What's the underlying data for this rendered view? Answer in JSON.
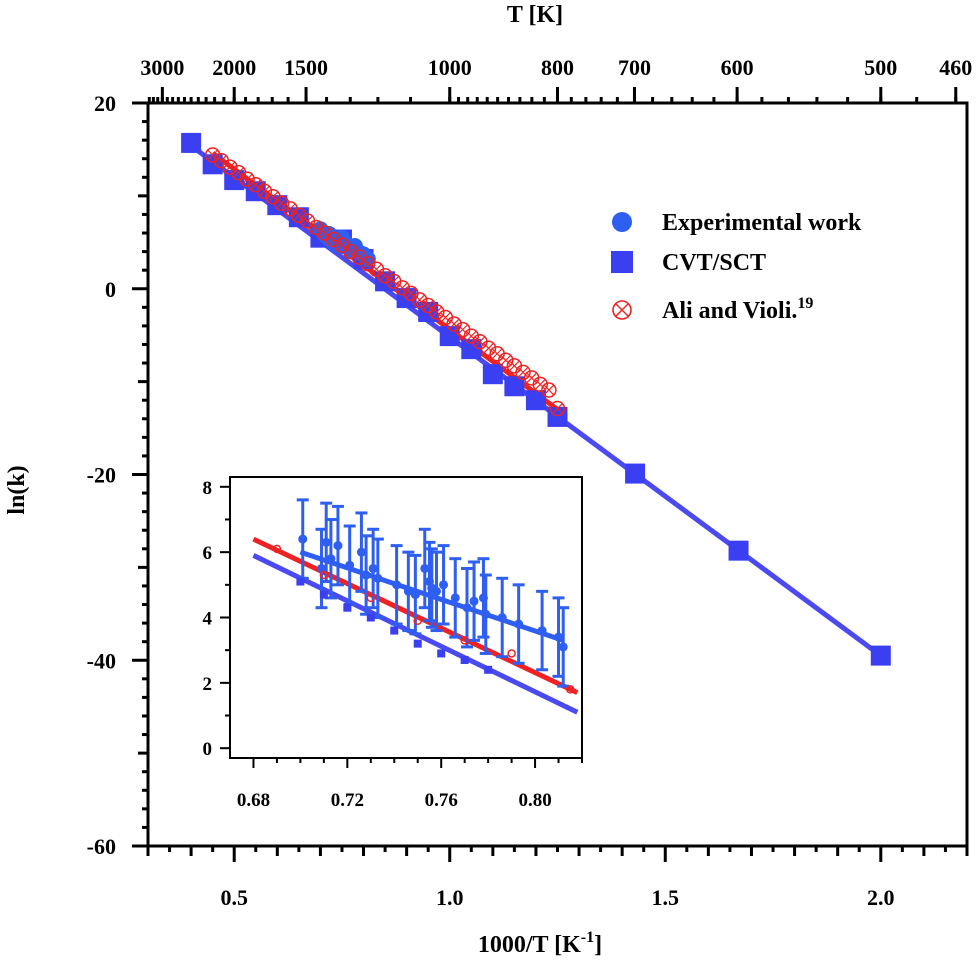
{
  "chart_data": [
    {
      "type": "scatter",
      "xlabel": "1000/T [K",
      "xlabel_sup": "-1",
      "xlabel_tail": "]",
      "ylabel": "ln(k)",
      "top_axis_label": "T [K]",
      "xlim": [
        0.3,
        2.2
      ],
      "ylim": [
        -60,
        20
      ],
      "x_ticks": [
        "0.5",
        "1.0",
        "1.5",
        "2.0"
      ],
      "y_ticks": [
        "20",
        "0",
        "-20",
        "-40",
        "-60"
      ],
      "top_ticks": [
        {
          "T": 3000,
          "label": "3000"
        },
        {
          "T": 2000,
          "label": "2000"
        },
        {
          "T": 1500,
          "label": "1500"
        },
        {
          "T": 1000,
          "label": "1000"
        },
        {
          "T": 800,
          "label": "800"
        },
        {
          "T": 700,
          "label": "700"
        },
        {
          "T": 600,
          "label": "600"
        },
        {
          "T": 500,
          "label": "500"
        },
        {
          "T": 460,
          "label": "460"
        }
      ],
      "legend": {
        "position": "top-right",
        "items": [
          {
            "label": "Experimental work",
            "marker": "circle",
            "color": "#2f5ff0"
          },
          {
            "label": "CVT/SCT",
            "marker": "square",
            "color": "#3b3ff2"
          },
          {
            "label": "Ali and Violi.",
            "sup": "19",
            "marker": "circle-x",
            "color": "#ee2222"
          }
        ]
      },
      "series": [
        {
          "name": "CVT/SCT",
          "color": "#3b3ff2",
          "x": [
            0.4,
            0.45,
            0.5,
            0.55,
            0.6,
            0.65,
            0.7,
            0.75,
            0.8,
            0.85,
            0.9,
            0.95,
            1.0,
            1.05,
            1.1,
            1.15,
            1.2,
            1.25,
            1.43,
            1.67,
            2.0
          ],
          "y": [
            15.7,
            13.4,
            11.7,
            10.5,
            9.0,
            7.7,
            5.5,
            5.3,
            3.2,
            0.8,
            -1.0,
            -2.5,
            -5.1,
            -6.5,
            -9.2,
            -10.5,
            -12.0,
            -13.8,
            -19.9,
            -28.2,
            -39.5
          ]
        },
        {
          "name": "Experimental work",
          "color": "#2f5ff0",
          "x": [
            0.7,
            0.71,
            0.72,
            0.72,
            0.73,
            0.74,
            0.75,
            0.75,
            0.76,
            0.77,
            0.78,
            0.79,
            0.8,
            0.81
          ],
          "y": [
            6.4,
            5.8,
            5.4,
            5.9,
            5.0,
            4.7,
            5.5,
            4.6,
            4.8,
            4.2,
            4.6,
            3.9,
            3.7,
            3.2
          ]
        },
        {
          "name": "Ali and Violi.",
          "color": "#ee2222",
          "x": [
            0.45,
            0.47,
            0.49,
            0.51,
            0.53,
            0.55,
            0.57,
            0.59,
            0.61,
            0.63,
            0.65,
            0.67,
            0.69,
            0.71,
            0.73,
            0.75,
            0.77,
            0.79,
            0.81,
            0.83,
            0.85,
            0.87,
            0.89,
            0.91,
            0.93,
            0.95,
            0.97,
            0.99,
            1.01,
            1.03,
            1.05,
            1.07,
            1.09,
            1.11,
            1.13,
            1.15,
            1.17,
            1.19,
            1.21,
            1.23,
            1.25
          ],
          "y": [
            14.4,
            13.8,
            13.1,
            12.5,
            11.8,
            11.2,
            10.5,
            9.9,
            9.2,
            8.6,
            7.9,
            7.3,
            6.6,
            6.0,
            5.3,
            4.7,
            4.0,
            3.4,
            2.7,
            2.1,
            1.4,
            0.8,
            0.1,
            -0.5,
            -1.2,
            -1.8,
            -2.5,
            -3.1,
            -3.8,
            -4.4,
            -5.1,
            -5.7,
            -6.4,
            -7.0,
            -7.7,
            -8.3,
            -9.0,
            -9.6,
            -10.3,
            -10.9,
            -12.9
          ]
        }
      ],
      "fit_lines": [
        {
          "name": "CVT/SCT fit",
          "color": "#4a4af0",
          "x": [
            0.4,
            2.0
          ],
          "y": [
            15.4,
            -39.5
          ]
        },
        {
          "name": "Ali and Violi. fit",
          "color": "#ee2222",
          "x": [
            0.45,
            1.25
          ],
          "y": [
            14.6,
            -13.0
          ]
        }
      ]
    },
    {
      "type": "scatter",
      "placement": "inset",
      "xlim": [
        0.67,
        0.82
      ],
      "ylim": [
        -0.3,
        8.3
      ],
      "x_ticks": [
        "0.68",
        "0.72",
        "0.76",
        "0.80"
      ],
      "y_ticks": [
        "8",
        "6",
        "4",
        "2",
        "0"
      ],
      "series": [
        {
          "name": "Experimental work",
          "color": "#2f5ff0",
          "x": [
            0.701,
            0.709,
            0.711,
            0.713,
            0.716,
            0.721,
            0.726,
            0.728,
            0.731,
            0.733,
            0.741,
            0.746,
            0.749,
            0.753,
            0.755,
            0.756,
            0.758,
            0.761,
            0.766,
            0.771,
            0.774,
            0.778,
            0.779,
            0.786,
            0.793,
            0.803,
            0.81,
            0.812
          ],
          "y": [
            6.4,
            5.5,
            6.3,
            5.8,
            6.2,
            5.6,
            6.0,
            5.3,
            5.5,
            5.2,
            5.0,
            4.8,
            4.7,
            5.5,
            5.1,
            4.9,
            4.8,
            5.0,
            4.6,
            4.3,
            4.5,
            4.6,
            4.1,
            4.0,
            3.8,
            3.6,
            3.4,
            3.1
          ],
          "err": 1.2
        },
        {
          "name": "CVT/SCT",
          "color": "#3b3ff2",
          "x": [
            0.7,
            0.71,
            0.72,
            0.73,
            0.74,
            0.75,
            0.76,
            0.77,
            0.78
          ],
          "y": [
            5.1,
            4.7,
            4.3,
            4.0,
            3.6,
            3.2,
            2.9,
            2.7,
            2.4
          ]
        },
        {
          "name": "Ali and Violi.",
          "color": "#ee2222",
          "x": [
            0.69,
            0.71,
            0.73,
            0.75,
            0.77,
            0.79,
            0.815
          ],
          "y": [
            6.1,
            5.3,
            4.6,
            3.9,
            3.3,
            2.9,
            1.8
          ]
        }
      ],
      "fit_lines": [
        {
          "name": "Experimental fit",
          "color": "#2f5ff0",
          "x": [
            0.7,
            0.812
          ],
          "y": [
            6.0,
            3.3
          ]
        },
        {
          "name": "CVT/SCT fit",
          "color": "#4a4af0",
          "x": [
            0.68,
            0.818
          ],
          "y": [
            5.9,
            1.1
          ]
        },
        {
          "name": "Ali and Violi. fit",
          "color": "#ee2222",
          "x": [
            0.68,
            0.818
          ],
          "y": [
            6.4,
            1.7
          ]
        }
      ]
    }
  ]
}
